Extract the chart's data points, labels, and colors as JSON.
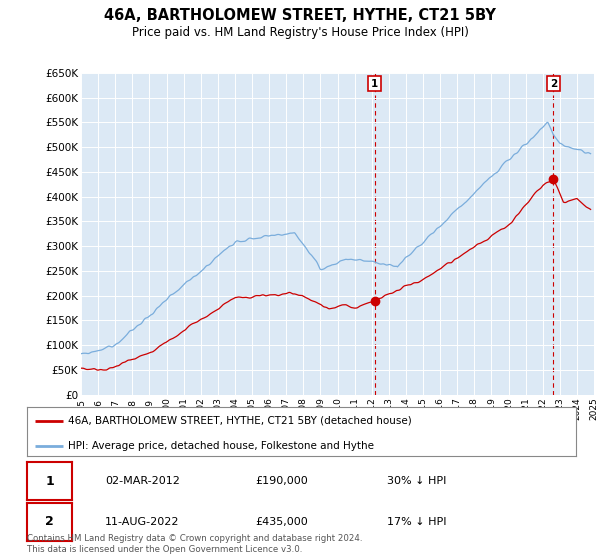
{
  "title": "46A, BARTHOLOMEW STREET, HYTHE, CT21 5BY",
  "subtitle": "Price paid vs. HM Land Registry's House Price Index (HPI)",
  "background_color": "#ffffff",
  "plot_bg_color": "#dce9f5",
  "ylabel_ticks": [
    "£0",
    "£50K",
    "£100K",
    "£150K",
    "£200K",
    "£250K",
    "£300K",
    "£350K",
    "£400K",
    "£450K",
    "£500K",
    "£550K",
    "£600K",
    "£650K"
  ],
  "ytick_values": [
    0,
    50000,
    100000,
    150000,
    200000,
    250000,
    300000,
    350000,
    400000,
    450000,
    500000,
    550000,
    600000,
    650000
  ],
  "ylim": [
    0,
    650000
  ],
  "hpi_color": "#7aaddc",
  "price_color": "#cc0000",
  "sale1_date": "02-MAR-2012",
  "sale1_price": 190000,
  "sale1_pct": "30% ↓ HPI",
  "sale1_label": "1",
  "sale1_year": 2012.17,
  "sale2_date": "11-AUG-2022",
  "sale2_price": 435000,
  "sale2_pct": "17% ↓ HPI",
  "sale2_label": "2",
  "sale2_year": 2022.62,
  "legend_line1": "46A, BARTHOLOMEW STREET, HYTHE, CT21 5BY (detached house)",
  "legend_line2": "HPI: Average price, detached house, Folkestone and Hythe",
  "footnote": "Contains HM Land Registry data © Crown copyright and database right 2024.\nThis data is licensed under the Open Government Licence v3.0.",
  "xstart": 1995,
  "xend": 2025
}
